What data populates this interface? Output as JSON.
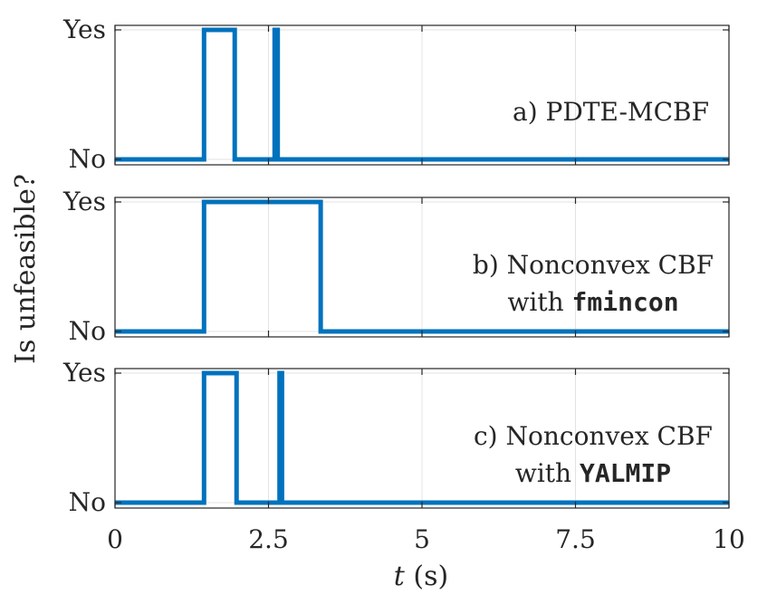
{
  "figure": {
    "ylabel": "Is unfeasible?",
    "xlabel_var": "t",
    "xlabel_unit": " (s)"
  },
  "colors": {
    "line": "#0072BD",
    "grid": "#e3e3e3",
    "axis": "#262626"
  },
  "chart_data": [
    {
      "type": "line",
      "title_parts": [
        {
          "text": "a) PDTE-MCBF",
          "mono": false
        }
      ],
      "title_lines": [
        [
          {
            "text": "a) PDTE-MCBF",
            "mono": false
          }
        ]
      ],
      "xlim": [
        0,
        10
      ],
      "ylim": [
        0,
        1
      ],
      "xticks": [
        0,
        2.5,
        5,
        7.5,
        10
      ],
      "yticks": [
        0,
        1
      ],
      "ytick_labels": [
        "No",
        "Yes"
      ],
      "grid": true,
      "series": [
        {
          "x": [
            0,
            1.45,
            1.45,
            1.95,
            1.95,
            2.6,
            2.6,
            2.65,
            2.65,
            10
          ],
          "y": [
            0,
            0,
            1,
            1,
            0,
            0,
            1,
            1,
            0,
            0
          ]
        }
      ]
    },
    {
      "type": "line",
      "title_lines": [
        [
          {
            "text": "b) Nonconvex CBF",
            "mono": false
          }
        ],
        [
          {
            "text": "with ",
            "mono": false
          },
          {
            "text": "fmincon",
            "mono": true
          }
        ]
      ],
      "xlim": [
        0,
        10
      ],
      "ylim": [
        0,
        1
      ],
      "xticks": [
        0,
        2.5,
        5,
        7.5,
        10
      ],
      "yticks": [
        0,
        1
      ],
      "ytick_labels": [
        "No",
        "Yes"
      ],
      "grid": true,
      "series": [
        {
          "x": [
            0,
            1.45,
            1.45,
            3.35,
            3.35,
            10
          ],
          "y": [
            0,
            0,
            1,
            1,
            0,
            0
          ]
        }
      ]
    },
    {
      "type": "line",
      "title_lines": [
        [
          {
            "text": "c) Nonconvex CBF",
            "mono": false
          }
        ],
        [
          {
            "text": "with ",
            "mono": false
          },
          {
            "text": "YALMIP",
            "mono": true
          }
        ]
      ],
      "xlim": [
        0,
        10
      ],
      "ylim": [
        0,
        1
      ],
      "xticks": [
        0,
        2.5,
        5,
        7.5,
        10
      ],
      "yticks": [
        0,
        1
      ],
      "ytick_labels": [
        "No",
        "Yes"
      ],
      "xtick_labels": [
        "0",
        "2.5",
        "5",
        "7.5",
        "10"
      ],
      "grid": true,
      "series": [
        {
          "x": [
            0,
            1.45,
            1.45,
            1.98,
            1.98,
            2.68,
            2.68,
            2.72,
            2.72,
            10
          ],
          "y": [
            0,
            0,
            1,
            1,
            0,
            0,
            1,
            1,
            0,
            0
          ]
        }
      ]
    }
  ]
}
